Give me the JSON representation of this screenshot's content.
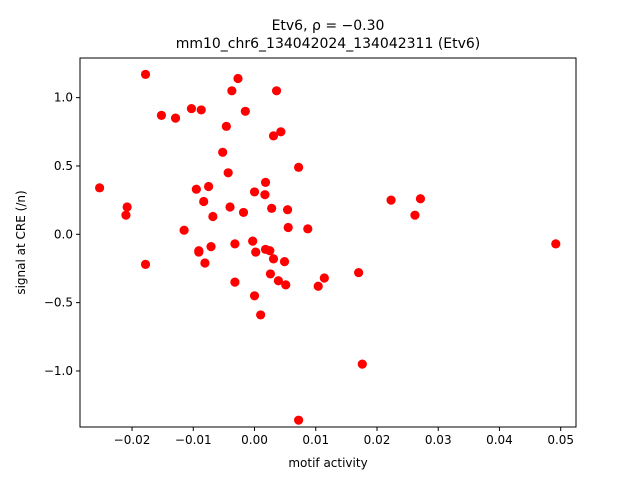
{
  "chart_data": {
    "type": "scatter",
    "title": "Etv6, ρ = −0.30",
    "subtitle": "mm10_chr6_134042024_134042311 (Etv6)",
    "xlabel": "motif activity",
    "ylabel": "signal at CRE (/n)",
    "xlim": [
      -0.0285,
      0.0525
    ],
    "ylim": [
      -1.41,
      1.29
    ],
    "xticks": [
      -0.02,
      -0.01,
      0.0,
      0.01,
      0.02,
      0.03,
      0.04,
      0.05
    ],
    "xtick_labels": [
      "−0.02",
      "−0.01",
      "0.00",
      "0.01",
      "0.02",
      "0.03",
      "0.04",
      "0.05"
    ],
    "yticks": [
      1.0,
      0.5,
      0.0,
      -0.5,
      -1.0
    ],
    "ytick_labels": [
      "1.0",
      "0.5",
      "0.0",
      "−0.5",
      "−1.0"
    ],
    "grid": false,
    "marker_color": "#ff0000",
    "points": [
      {
        "x": -0.0253,
        "y": 0.34
      },
      {
        "x": -0.0208,
        "y": 0.2
      },
      {
        "x": -0.021,
        "y": 0.14
      },
      {
        "x": -0.0178,
        "y": 1.17
      },
      {
        "x": -0.0178,
        "y": -0.22
      },
      {
        "x": -0.0152,
        "y": 0.87
      },
      {
        "x": -0.0129,
        "y": 0.85
      },
      {
        "x": -0.0115,
        "y": 0.03
      },
      {
        "x": -0.0103,
        "y": 0.92
      },
      {
        "x": -0.0095,
        "y": 0.33
      },
      {
        "x": -0.0091,
        "y": -0.12
      },
      {
        "x": -0.0091,
        "y": -0.13
      },
      {
        "x": -0.0087,
        "y": 0.91
      },
      {
        "x": -0.0083,
        "y": 0.24
      },
      {
        "x": -0.0081,
        "y": -0.21
      },
      {
        "x": -0.0075,
        "y": 0.35
      },
      {
        "x": -0.0071,
        "y": -0.09
      },
      {
        "x": -0.0068,
        "y": 0.13
      },
      {
        "x": -0.0052,
        "y": 0.6
      },
      {
        "x": -0.0046,
        "y": 0.79
      },
      {
        "x": -0.0043,
        "y": 0.45
      },
      {
        "x": -0.004,
        "y": 0.2
      },
      {
        "x": -0.0037,
        "y": 1.05
      },
      {
        "x": -0.0032,
        "y": -0.07
      },
      {
        "x": -0.0032,
        "y": -0.35
      },
      {
        "x": -0.0027,
        "y": 1.14
      },
      {
        "x": -0.0018,
        "y": 0.16
      },
      {
        "x": -0.0015,
        "y": 0.9
      },
      {
        "x": -0.0003,
        "y": -0.05
      },
      {
        "x": 0.0,
        "y": 0.31
      },
      {
        "x": 0.0,
        "y": -0.45
      },
      {
        "x": 0.0002,
        "y": -0.13
      },
      {
        "x": 0.001,
        "y": -0.59
      },
      {
        "x": 0.0017,
        "y": 0.29
      },
      {
        "x": 0.0018,
        "y": 0.38
      },
      {
        "x": 0.0018,
        "y": -0.11
      },
      {
        "x": 0.0025,
        "y": -0.12
      },
      {
        "x": 0.0026,
        "y": -0.29
      },
      {
        "x": 0.0028,
        "y": 0.19
      },
      {
        "x": 0.0031,
        "y": 0.72
      },
      {
        "x": 0.0031,
        "y": -0.18
      },
      {
        "x": 0.0036,
        "y": 1.05
      },
      {
        "x": 0.0039,
        "y": -0.34
      },
      {
        "x": 0.0043,
        "y": 0.75
      },
      {
        "x": 0.0049,
        "y": -0.2
      },
      {
        "x": 0.0051,
        "y": -0.37
      },
      {
        "x": 0.0054,
        "y": 0.18
      },
      {
        "x": 0.0055,
        "y": 0.05
      },
      {
        "x": 0.0072,
        "y": 0.49
      },
      {
        "x": 0.0072,
        "y": -1.36
      },
      {
        "x": 0.0087,
        "y": 0.04
      },
      {
        "x": 0.0104,
        "y": -0.38
      },
      {
        "x": 0.0114,
        "y": -0.32
      },
      {
        "x": 0.017,
        "y": -0.28
      },
      {
        "x": 0.0176,
        "y": -0.95
      },
      {
        "x": 0.0223,
        "y": 0.25
      },
      {
        "x": 0.0262,
        "y": 0.14
      },
      {
        "x": 0.0271,
        "y": 0.26
      },
      {
        "x": 0.0492,
        "y": -0.07
      }
    ]
  }
}
